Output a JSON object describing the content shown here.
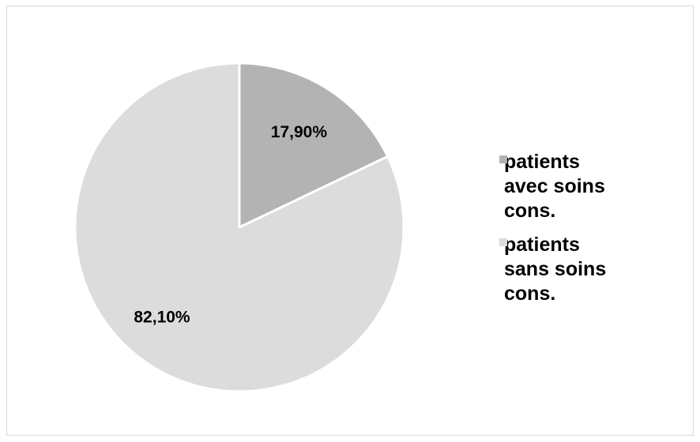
{
  "chart_data": {
    "type": "pie",
    "slices": [
      {
        "label": "patients avec soins cons.",
        "value": 17.9,
        "display": "17,90%",
        "color": "#b3b3b3"
      },
      {
        "label": "patients sans soins cons.",
        "value": 82.1,
        "display": "82,10%",
        "color": "#dcdcdc"
      }
    ],
    "title": "",
    "legend_position": "right",
    "start_angle_deg": 0,
    "direction": "clockwise"
  },
  "legend": {
    "items": [
      {
        "label": "patients\navec  soins\ncons.",
        "color": "#b3b3b3"
      },
      {
        "label": "patients\nsans soins\ncons.",
        "color": "#dcdcdc"
      }
    ]
  }
}
